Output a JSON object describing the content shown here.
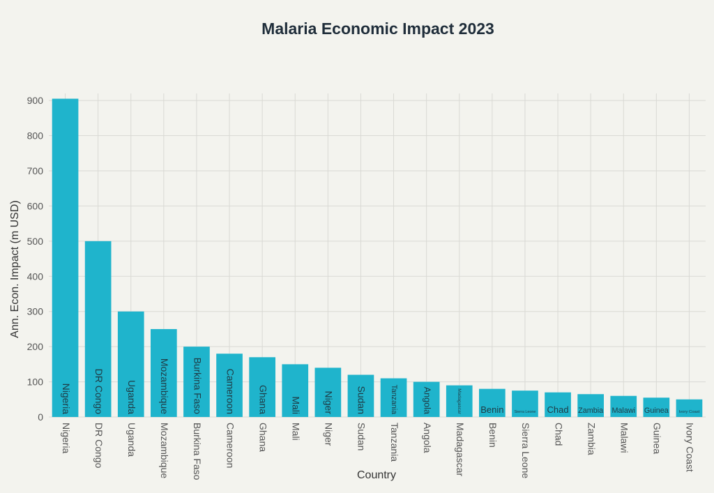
{
  "chart_data": {
    "type": "bar",
    "title": "Malaria Economic Impact 2023",
    "xlabel": "Country",
    "ylabel": "Ann. Econ. Impact (m USD)",
    "ylim": [
      0,
      920
    ],
    "yticks": [
      0,
      100,
      200,
      300,
      400,
      500,
      600,
      700,
      800,
      900
    ],
    "grid": true,
    "bar_color": "#1fb4cc",
    "categories": [
      "Nigeria",
      "DR Congo",
      "Uganda",
      "Mozambique",
      "Burkina Faso",
      "Cameroon",
      "Ghana",
      "Mali",
      "Niger",
      "Sudan",
      "Tanzania",
      "Angola",
      "Madagascar",
      "Benin",
      "Sierra Leone",
      "Chad",
      "Zambia",
      "Malawi",
      "Guinea",
      "Ivory Coast"
    ],
    "values": [
      905,
      500,
      300,
      250,
      200,
      180,
      170,
      150,
      140,
      120,
      110,
      100,
      90,
      80,
      75,
      70,
      65,
      60,
      55,
      50
    ]
  }
}
